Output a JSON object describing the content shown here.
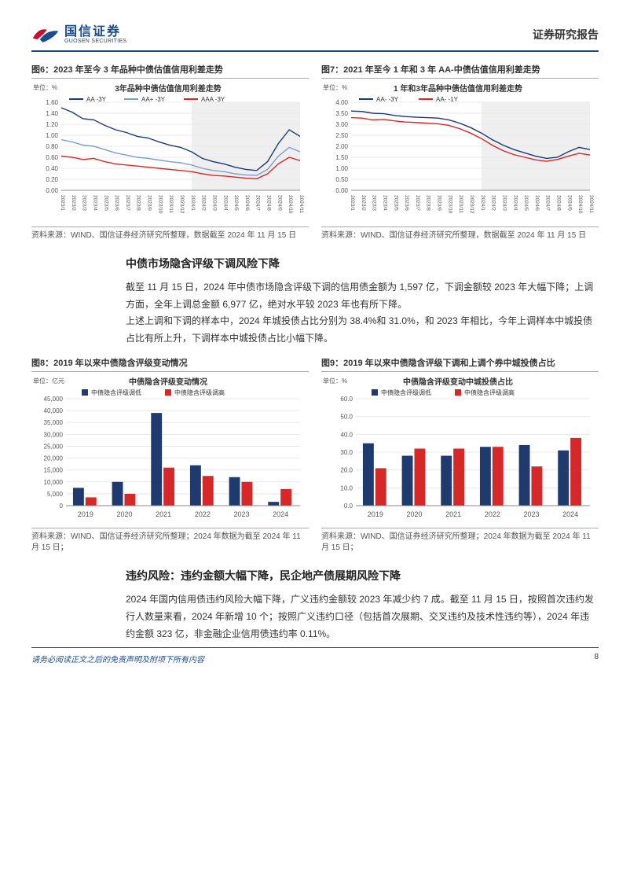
{
  "header": {
    "company_cn": "国信证券",
    "company_en": "GUOSEN SECURITIES",
    "doc_type": "证券研究报告"
  },
  "fig6": {
    "caption": "图6：2023 年至今 3 年品种中债估值信用利差走势",
    "chart_title": "3年品种中债估值信用利差走势",
    "type": "line",
    "unit_label": "单位：%",
    "x_labels": [
      "2023/1",
      "2023/2",
      "2023/3",
      "2023/4",
      "2023/5",
      "2023/6",
      "2023/7",
      "2023/8",
      "2023/9",
      "2023/10",
      "2023/11",
      "2023/12",
      "2024/1",
      "2024/2",
      "2024/3",
      "2024/4",
      "2024/5",
      "2024/6",
      "2024/7",
      "2024/8",
      "2024/9",
      "2024/10",
      "2024/11"
    ],
    "ylim": [
      0.0,
      1.6
    ],
    "ytick_step": 0.2,
    "series": [
      {
        "name": "AA -3Y",
        "color": "#1a3a7a",
        "data": [
          1.5,
          1.42,
          1.3,
          1.28,
          1.18,
          1.1,
          1.05,
          0.98,
          0.95,
          0.88,
          0.82,
          0.78,
          0.7,
          0.58,
          0.52,
          0.48,
          0.42,
          0.38,
          0.36,
          0.52,
          0.85,
          1.1,
          0.98
        ]
      },
      {
        "name": "AA+ -3Y",
        "color": "#7a9ecf",
        "data": [
          0.92,
          0.88,
          0.82,
          0.8,
          0.74,
          0.68,
          0.64,
          0.6,
          0.58,
          0.55,
          0.52,
          0.5,
          0.46,
          0.4,
          0.36,
          0.34,
          0.3,
          0.28,
          0.27,
          0.38,
          0.62,
          0.78,
          0.7
        ]
      },
      {
        "name": "AAA -3Y",
        "color": "#d62828",
        "data": [
          0.62,
          0.6,
          0.56,
          0.58,
          0.52,
          0.48,
          0.46,
          0.44,
          0.42,
          0.4,
          0.38,
          0.36,
          0.34,
          0.3,
          0.27,
          0.26,
          0.24,
          0.22,
          0.21,
          0.3,
          0.48,
          0.6,
          0.54
        ]
      }
    ],
    "shade_start_idx": 12,
    "bg": "#ffffff",
    "grid": "#e8e8e8",
    "source": "资料来源：WIND、国信证券经济研究所整理，数据截至 2024 年 11 月 15 日"
  },
  "fig7": {
    "caption": "图7：2021 年至今 1 年和 3 年 AA-中债估值信用利差走势",
    "chart_title": "1 年和3年品种中债估值信用利差走势",
    "type": "line",
    "unit_label": "单位：%",
    "x_labels": [
      "2023/1",
      "2023/2",
      "2023/3",
      "2023/4",
      "2023/5",
      "2023/6",
      "2023/7",
      "2023/8",
      "2023/9",
      "2023/10",
      "2023/11",
      "2023/12",
      "2024/1",
      "2024/2",
      "2024/3",
      "2024/4",
      "2024/5",
      "2024/6",
      "2024/7",
      "2024/8",
      "2024/9",
      "2024/10",
      "2024/11"
    ],
    "ylim": [
      0.0,
      4.0
    ],
    "ytick_step": 0.5,
    "series": [
      {
        "name": "AA- -3Y",
        "color": "#1a3a7a",
        "data": [
          3.6,
          3.58,
          3.5,
          3.48,
          3.4,
          3.35,
          3.32,
          3.3,
          3.28,
          3.2,
          3.05,
          2.85,
          2.6,
          2.3,
          2.05,
          1.85,
          1.7,
          1.55,
          1.45,
          1.5,
          1.75,
          1.95,
          1.85
        ]
      },
      {
        "name": "AA- -1Y",
        "color": "#d62828",
        "data": [
          3.3,
          3.28,
          3.2,
          3.22,
          3.15,
          3.1,
          3.08,
          3.05,
          3.02,
          2.95,
          2.8,
          2.6,
          2.35,
          2.05,
          1.8,
          1.62,
          1.5,
          1.38,
          1.32,
          1.4,
          1.55,
          1.68,
          1.6
        ]
      }
    ],
    "shade_start_idx": 12,
    "bg": "#ffffff",
    "grid": "#e8e8e8",
    "source": "资料来源：WIND、国信证券经济研究所整理，数据截至 2024 年 11 月 15 日"
  },
  "section1": {
    "title": "中债市场隐含评级下调风险下降",
    "p1": "截至 11 月 15 日，2024 年中债市场隐含评级下调的信用债金额为 1,597 亿，下调金额较 2023 年大幅下降；上调方面，全年上调总金额 6,977 亿，绝对水平较 2023 年也有所下降。",
    "p2": "上述上调和下调的样本中，2024 年城投债占比分别为 38.4%和 31.0%，和 2023 年相比，今年上调样本中城投债占比有所上升，下调样本中城投债占比小幅下降。"
  },
  "fig8": {
    "caption": "图8：2019 年以来中债隐含评级变动情况",
    "chart_title": "中债隐含评级变动情况",
    "type": "grouped-bar",
    "unit_label": "单位：亿元",
    "categories": [
      "2019",
      "2020",
      "2021",
      "2022",
      "2023",
      "2024"
    ],
    "ylim": [
      0,
      45000
    ],
    "ytick_step": 5000,
    "series": [
      {
        "name": "中债隐含评级调低",
        "color": "#1f3a6e",
        "data": [
          7500,
          10000,
          39000,
          17000,
          12000,
          1597
        ]
      },
      {
        "name": "中债隐含评级调高",
        "color": "#d62828",
        "data": [
          3500,
          5000,
          16000,
          12500,
          10000,
          6977
        ]
      }
    ],
    "bg": "#ffffff",
    "grid": "#e8e8e8",
    "bar_width": 0.32,
    "source": "资料来源：WIND、国信证券经济研究所整理；2024 年数据为截至 2024 年 11 月 15 日；"
  },
  "fig9": {
    "caption": "图9：2019 年以来中债隐含评级下调和上调个券中城投债占比",
    "chart_title": "中债隐含评级变动中城投债占比",
    "type": "grouped-bar",
    "unit_label": "单位：%",
    "categories": [
      "2019",
      "2020",
      "2021",
      "2022",
      "2023",
      "2024"
    ],
    "ylim": [
      0,
      60
    ],
    "ytick_step": 10,
    "series": [
      {
        "name": "中债隐含评级调低",
        "color": "#1f3a6e",
        "data": [
          35,
          28,
          28,
          33,
          34,
          31
        ]
      },
      {
        "name": "中债隐含评级调高",
        "color": "#d62828",
        "data": [
          21,
          32,
          32,
          33,
          22,
          38
        ]
      }
    ],
    "bg": "#ffffff",
    "grid": "#e8e8e8",
    "bar_width": 0.32,
    "source": "资料来源：WIND、国信证券经济研究所整理；2024 年数据为截至 2024 年 11 月 15 日；"
  },
  "section2": {
    "title": "违约风险：违约金额大幅下降，民企地产债展期风险下降",
    "p1": "2024 年国内信用债违约风险大幅下降，广义违约金额较 2023 年减少约 7 成。截至 11 月 15 日，按照首次违约发行人数量来看，2024 年新增 10 个；按照广义违约口径（包括首次展期、交叉违约及技术性违约等），2024 年违约金额 323 亿，非金融企业信用债违约率 0.11%。"
  },
  "footer": {
    "disclaimer": "请务必阅读正文之后的免责声明及附项下所有内容",
    "page": "8"
  }
}
